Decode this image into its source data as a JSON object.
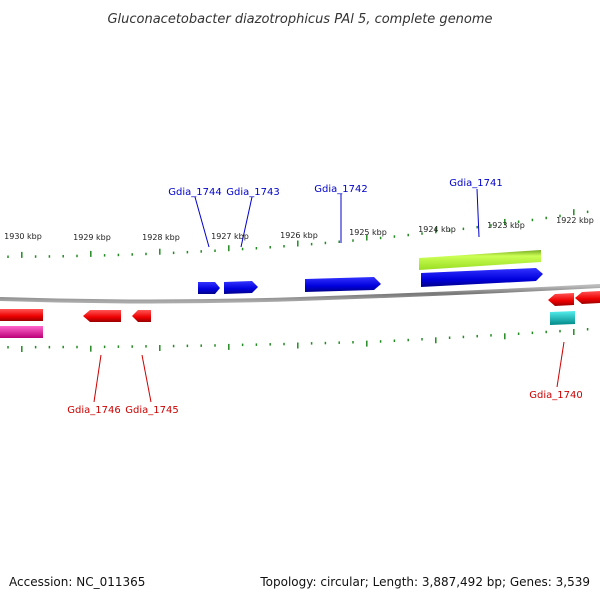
{
  "title": "Gluconacetobacter diazotrophicus PAl 5, complete genome",
  "footer": {
    "accession": "Accession: NC_011365",
    "summary": "Topology: circular; Length: 3,887,492 bp; Genes: 3,539"
  },
  "ruler": {
    "labels": [
      "1930 kbp",
      "1929 kbp",
      "1928 kbp",
      "1927 kbp",
      "1926 kbp",
      "1925 kbp",
      "1924 kbp",
      "1923 kbp",
      "1922 kbp"
    ]
  },
  "genes": [
    {
      "id": "Gdia_1744",
      "color": "#0000cc"
    },
    {
      "id": "Gdia_1743",
      "color": "#0000cc"
    },
    {
      "id": "Gdia_1742",
      "color": "#0000cc"
    },
    {
      "id": "Gdia_1741",
      "color": "#0000cc"
    },
    {
      "id": "Gdia_1746",
      "color": "#cc0000"
    },
    {
      "id": "Gdia_1745",
      "color": "#cc0000"
    },
    {
      "id": "Gdia_1740",
      "color": "#cc0000"
    }
  ],
  "colors": {
    "forward": "#0000ee",
    "reverse": "#ee0000",
    "rna": "#aaff33",
    "tick": "#228b22",
    "backbone": "#888888",
    "magenta": "#ee1199",
    "cyan": "#11bbbb"
  }
}
